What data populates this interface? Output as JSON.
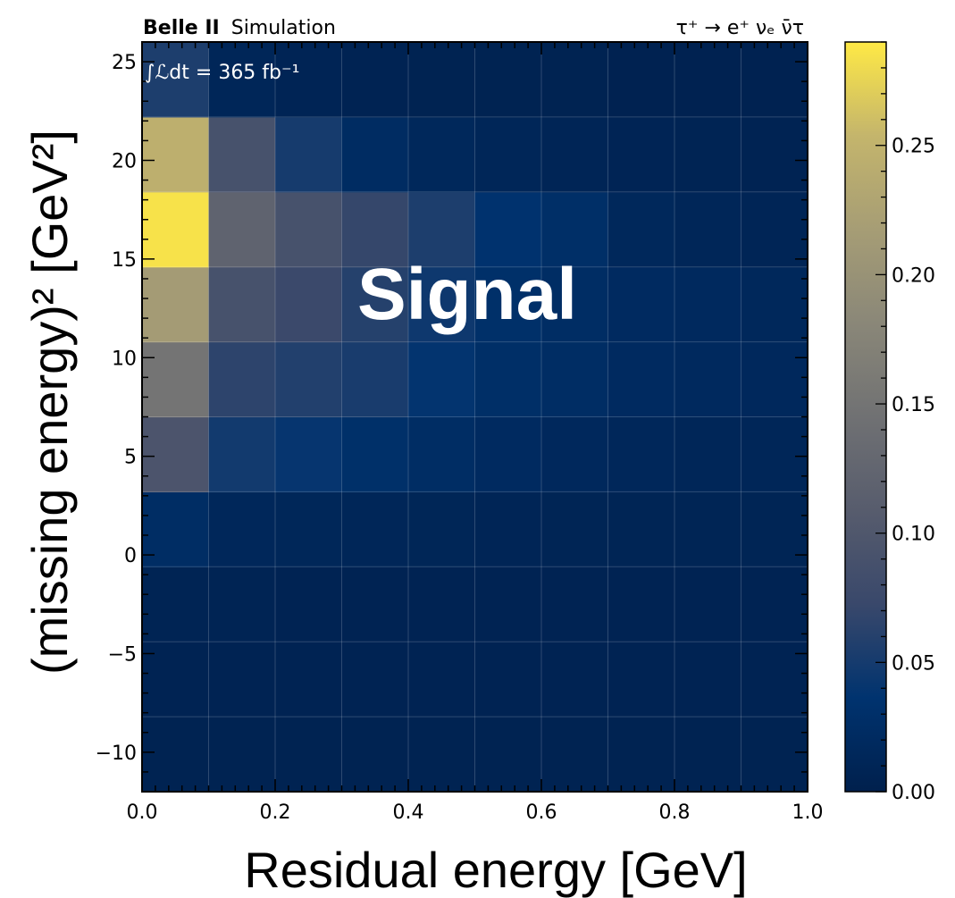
{
  "chart_data": {
    "type": "heatmap",
    "header_left_bold": "Belle II",
    "header_left": "Simulation",
    "header_right": "τ⁺ → e⁺ νₑ ν̄τ",
    "luminosity": "∫ℒdt = 365 fb⁻¹",
    "overlay_label": "Signal",
    "xlabel": "Residual energy [GeV]",
    "ylabel": "(missing energy)² [GeV²]",
    "xlim": [
      0.0,
      1.0
    ],
    "ylim": [
      -12,
      26
    ],
    "x_ticks": [
      0.0,
      0.2,
      0.4,
      0.6,
      0.8,
      1.0
    ],
    "x_tick_labels": [
      "0.0",
      "0.2",
      "0.4",
      "0.6",
      "0.8",
      "1.0"
    ],
    "y_ticks": [
      -10,
      -5,
      0,
      5,
      10,
      15,
      20,
      25
    ],
    "y_tick_labels": [
      "−10",
      "−5",
      "0",
      "5",
      "10",
      "15",
      "20",
      "25"
    ],
    "x_edges": [
      0.0,
      0.1,
      0.2,
      0.3,
      0.4,
      0.5,
      0.6,
      0.7,
      0.8,
      0.9,
      1.0
    ],
    "y_edges": [
      -12,
      -8.2,
      -4.4,
      -0.6,
      3.2,
      7.0,
      10.8,
      14.6,
      18.4,
      22.2,
      26.0
    ],
    "z_rows_bottom_to_top": [
      [
        0.005,
        0.005,
        0.005,
        0.005,
        0.005,
        0.005,
        0.005,
        0.005,
        0.005,
        0.005
      ],
      [
        0.006,
        0.006,
        0.006,
        0.006,
        0.006,
        0.006,
        0.006,
        0.006,
        0.006,
        0.006
      ],
      [
        0.007,
        0.007,
        0.006,
        0.006,
        0.006,
        0.006,
        0.006,
        0.006,
        0.006,
        0.006
      ],
      [
        0.025,
        0.014,
        0.013,
        0.012,
        0.011,
        0.01,
        0.009,
        0.009,
        0.009,
        0.009
      ],
      [
        0.095,
        0.048,
        0.04,
        0.03,
        0.025,
        0.02,
        0.016,
        0.014,
        0.012,
        0.012
      ],
      [
        0.15,
        0.065,
        0.058,
        0.052,
        0.038,
        0.028,
        0.025,
        0.02,
        0.018,
        0.016
      ],
      [
        0.215,
        0.09,
        0.075,
        0.06,
        0.045,
        0.03,
        0.025,
        0.02,
        0.018,
        0.015
      ],
      [
        0.285,
        0.12,
        0.09,
        0.07,
        0.055,
        0.035,
        0.028,
        0.015,
        0.012,
        0.01
      ],
      [
        0.245,
        0.09,
        0.05,
        0.022,
        0.015,
        0.012,
        0.01,
        0.008,
        0.007,
        0.006
      ],
      [
        0.055,
        0.012,
        0.008,
        0.006,
        0.005,
        0.005,
        0.005,
        0.004,
        0.004,
        0.004
      ]
    ],
    "colorbar": {
      "colormap": "cividis",
      "zlim": [
        0.0,
        0.29
      ],
      "ticks": [
        0.0,
        0.05,
        0.1,
        0.15,
        0.2,
        0.25
      ],
      "tick_labels": [
        "0.00",
        "0.05",
        "0.10",
        "0.15",
        "0.20",
        "0.25"
      ]
    },
    "grid": true
  }
}
